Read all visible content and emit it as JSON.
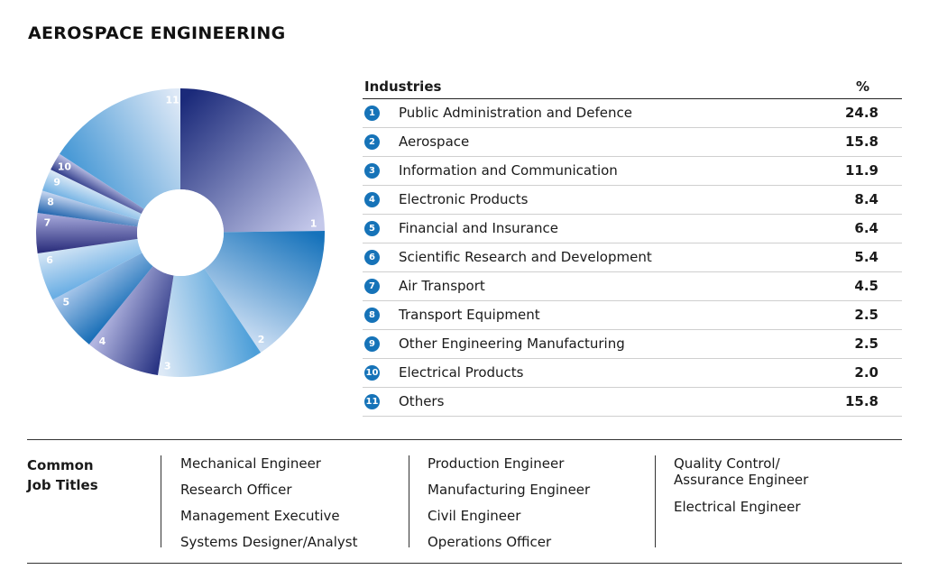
{
  "title": "AEROSPACE ENGINEERING",
  "table": {
    "header_industries": "Industries",
    "header_percent": "%"
  },
  "chart_data": {
    "type": "pie",
    "title": "AEROSPACE ENGINEERING",
    "donut": true,
    "categories": [
      "Public Administration and Defence",
      "Aerospace",
      "Information and Communication",
      "Electronic Products",
      "Financial and Insurance",
      "Scientific Research and Development",
      "Air Transport",
      "Transport Equipment",
      "Other Engineering Manufacturing",
      "Electrical Products",
      "Others"
    ],
    "values": [
      24.8,
      15.8,
      11.9,
      8.4,
      6.4,
      5.4,
      4.5,
      2.5,
      2.5,
      2.0,
      15.8
    ],
    "display_values": [
      "24.8",
      "15.8",
      "11.9",
      "8.4",
      "6.4",
      "5.4",
      "4.5",
      "2.5",
      "2.5",
      "2.0",
      "15.8"
    ],
    "labels": [
      "1",
      "2",
      "3",
      "4",
      "5",
      "6",
      "7",
      "8",
      "9",
      "10",
      "11"
    ],
    "gradients": [
      [
        "#1b2a7a",
        "#c4c8ea"
      ],
      [
        "#1572bb",
        "#c8dcf2"
      ],
      [
        "#4d9fd9",
        "#dde9f6"
      ],
      [
        "#2a3584",
        "#b2b5e0"
      ],
      [
        "#1b70b8",
        "#a7c6ea"
      ],
      [
        "#6aaee4",
        "#d2e4f5"
      ],
      [
        "#2c2f7d",
        "#a4a7d9"
      ],
      [
        "#2869b0",
        "#c2d3ee"
      ],
      [
        "#73b2e4",
        "#d9e8f6"
      ],
      [
        "#333f8c",
        "#b8bde3"
      ],
      [
        "#4a9ad6",
        "#dde8f6"
      ]
    ]
  },
  "job_titles": {
    "heading_line1": "Common",
    "heading_line2": "Job Titles",
    "col1": [
      "Mechanical Engineer",
      "Research Officer",
      "Management Executive",
      "Systems Designer/Analyst"
    ],
    "col2": [
      "Production Engineer",
      "Manufacturing Engineer",
      "Civil Engineer",
      "Operations Officer"
    ],
    "col3_line1": "Quality Control/",
    "col3_line2": "Assurance Engineer",
    "col3_item2": "Electrical Engineer"
  }
}
